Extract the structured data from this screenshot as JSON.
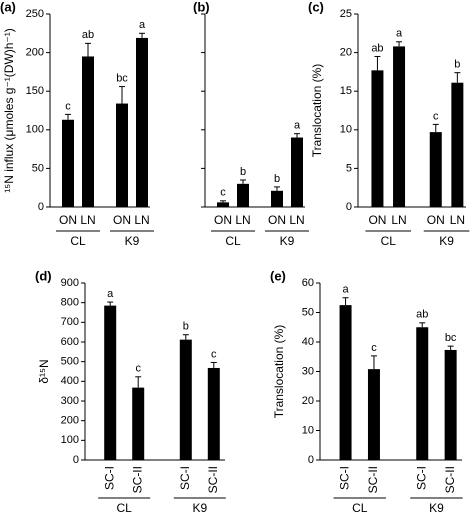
{
  "chart_data": [
    {
      "type": "bar",
      "panel": "(a)",
      "ylabel": "¹⁵N influx (μmoles g⁻¹(DW)h⁻¹)",
      "categories": [
        "ON",
        "LN",
        "ON",
        "LN"
      ],
      "groups": [
        "CL",
        "K9"
      ],
      "values": [
        113,
        195,
        134,
        219
      ],
      "errors": [
        7,
        17,
        22,
        6
      ],
      "annotations": [
        "c",
        "ab",
        "bc",
        "a"
      ],
      "ylim": [
        0,
        250
      ],
      "yticks": [
        0,
        50,
        100,
        150,
        200,
        250
      ],
      "color": "#000000"
    },
    {
      "type": "bar",
      "panel": "(b)",
      "categories": [
        "ON",
        "LN",
        "ON",
        "LN"
      ],
      "groups": [
        "CL",
        "K9"
      ],
      "values": [
        6,
        30,
        21,
        90
      ],
      "errors": [
        2,
        5,
        5,
        5
      ],
      "annotations": [
        "c",
        "b",
        "b",
        "a"
      ],
      "ylim": [
        0,
        250
      ],
      "yticks": [
        0,
        50,
        100,
        150,
        200,
        250
      ],
      "tick_labels": false,
      "color": "#000000"
    },
    {
      "type": "bar",
      "panel": "(c)",
      "ylabel": "Translocation (%)",
      "categories": [
        "ON",
        "LN",
        "ON",
        "LN"
      ],
      "groups": [
        "CL",
        "K9"
      ],
      "values": [
        17.7,
        20.8,
        9.7,
        16.1
      ],
      "errors": [
        1.8,
        0.6,
        1.0,
        1.3
      ],
      "annotations": [
        "ab",
        "a",
        "c",
        "b"
      ],
      "ylim": [
        0,
        25
      ],
      "yticks": [
        0,
        5,
        10,
        15,
        20,
        25
      ],
      "color": "#000000"
    },
    {
      "type": "bar",
      "panel": "(d)",
      "ylabel": "δ¹⁵N",
      "categories": [
        "SC-I",
        "SC-II",
        "SC-I",
        "SC-II"
      ],
      "groups": [
        "CL",
        "K9"
      ],
      "values": [
        785,
        368,
        612,
        468
      ],
      "errors": [
        18,
        55,
        25,
        28
      ],
      "annotations": [
        "a",
        "c",
        "b",
        "c"
      ],
      "ylim": [
        0,
        900
      ],
      "yticks": [
        0,
        100,
        200,
        300,
        400,
        500,
        600,
        700,
        800,
        900
      ],
      "rotate_categories": true,
      "color": "#000000"
    },
    {
      "type": "bar",
      "panel": "(e)",
      "ylabel": "Translocation (%)",
      "categories": [
        "SC-I",
        "SC-II",
        "SC-I",
        "SC-II"
      ],
      "groups": [
        "CL",
        "K9"
      ],
      "values": [
        52.5,
        30.8,
        45,
        37.3
      ],
      "errors": [
        2.5,
        4.5,
        1.5,
        1.3
      ],
      "annotations": [
        "a",
        "c",
        "ab",
        "bc"
      ],
      "ylim": [
        0,
        60
      ],
      "yticks": [
        0,
        10,
        20,
        30,
        40,
        50,
        60
      ],
      "rotate_categories": true,
      "color": "#000000"
    }
  ]
}
